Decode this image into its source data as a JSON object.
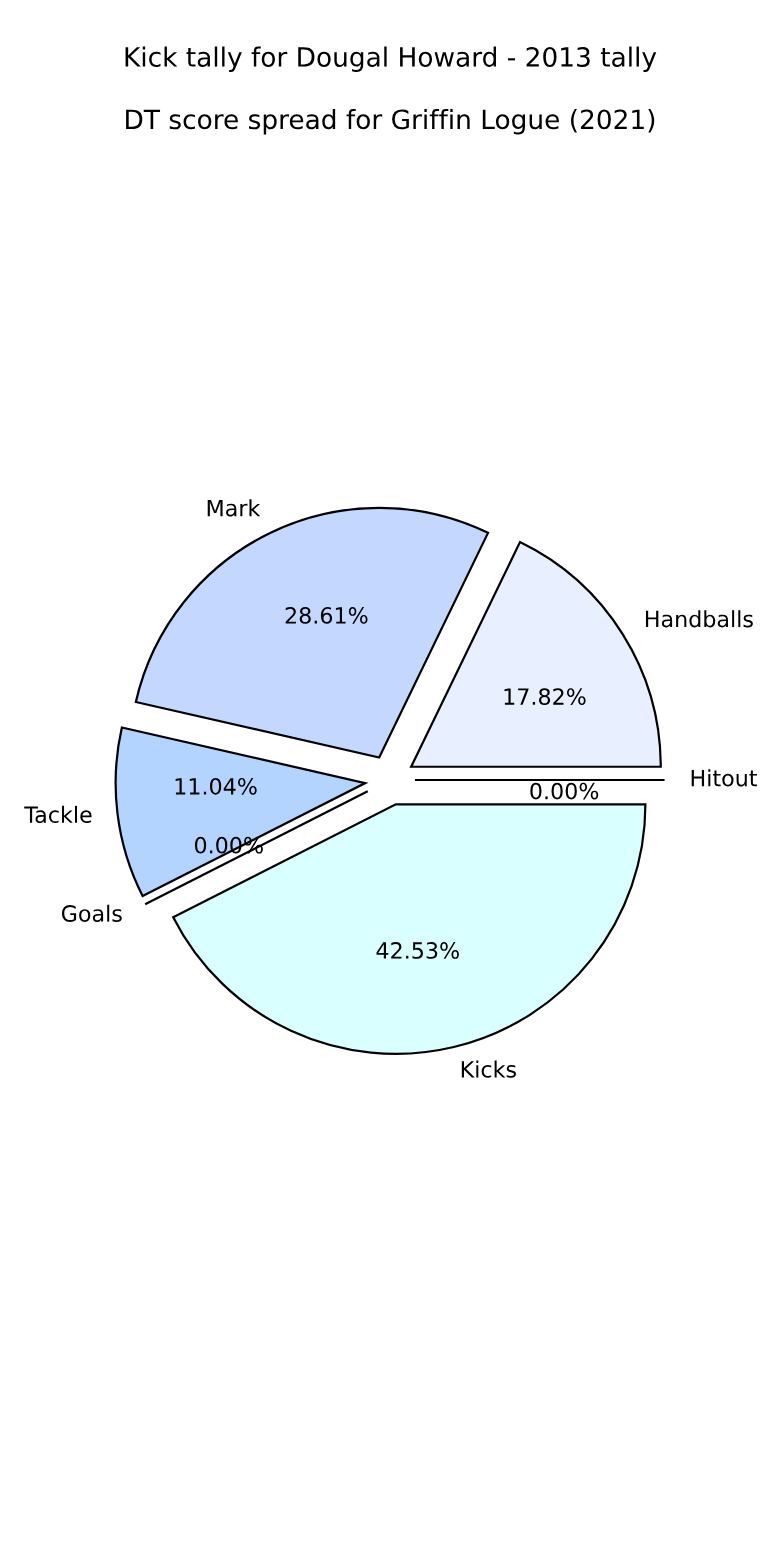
{
  "chart_data": {
    "type": "pie",
    "title": "Kick tally for Dougal Howard - 2013 tally",
    "subtitle": "DT score spread for Griffin Logue (2021)",
    "categories": [
      "Handballs",
      "Mark",
      "Tackle",
      "Goals",
      "Kicks",
      "Hitout"
    ],
    "values": [
      17.82,
      28.61,
      11.04,
      0.0,
      42.53,
      0.0
    ],
    "value_labels": [
      "17.82%",
      "28.61%",
      "11.04%",
      "0.00%",
      "42.53%",
      "0.00%"
    ],
    "colors": [
      "#e8f0ff",
      "#c4d8ff",
      "#b3d4ff",
      "#add8e6",
      "#d9ffff",
      "#e0e0ff"
    ],
    "legend": false
  }
}
